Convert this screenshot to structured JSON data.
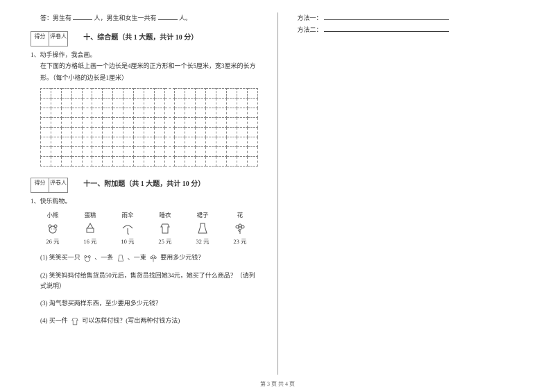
{
  "left": {
    "answer_line": {
      "prefix": "答：男生有",
      "mid": "人，男生和女生一共有",
      "suffix": "人。"
    },
    "score_labels": {
      "score": "得分",
      "grader": "评卷人"
    },
    "section10": {
      "title": "十、综合题（共 1 大题，共计 10 分）",
      "q1_num": "1、动手操作，我会画。",
      "q1_text": "在下面的方格纸上画一个边长是4厘米的正方形和一个长5厘米，宽3厘米的长方形。（每个小格的边长是1厘米）"
    },
    "section11": {
      "title": "十一、附加题（共 1 大题，共计 10 分）",
      "q1_num": "1、快乐购物。",
      "items": [
        {
          "name": "小熊",
          "price": "26 元",
          "icon": "bear"
        },
        {
          "name": "蛋糕",
          "price": "16 元",
          "icon": "cake"
        },
        {
          "name": "雨伞",
          "price": "10 元",
          "icon": "umbrella"
        },
        {
          "name": "睡衣",
          "price": "25 元",
          "icon": "pajama"
        },
        {
          "name": "裙子",
          "price": "32 元",
          "icon": "skirt"
        },
        {
          "name": "花",
          "price": "23 元",
          "icon": "flower"
        }
      ],
      "sub1": {
        "a": "(1) 笑笑买一只",
        "b": "、一条",
        "c": "、一束",
        "d": "要用多少元钱？"
      },
      "sub2": "(2) 笑笑妈妈付给售货员50元后，售货员找回她34元，她买了什么商品？（请列式说明）",
      "sub3": "(3) 淘气想买两样东西，至少要用多少元钱？",
      "sub4": {
        "a": "(4) 买一件",
        "b": "可以怎样付钱？(写出两种付钱方法)"
      }
    }
  },
  "right": {
    "m1": "方法一：",
    "m2": "方法二："
  },
  "footer": "第 3 页 共 4 页",
  "grid": {
    "rows": 8,
    "cols": 21
  }
}
